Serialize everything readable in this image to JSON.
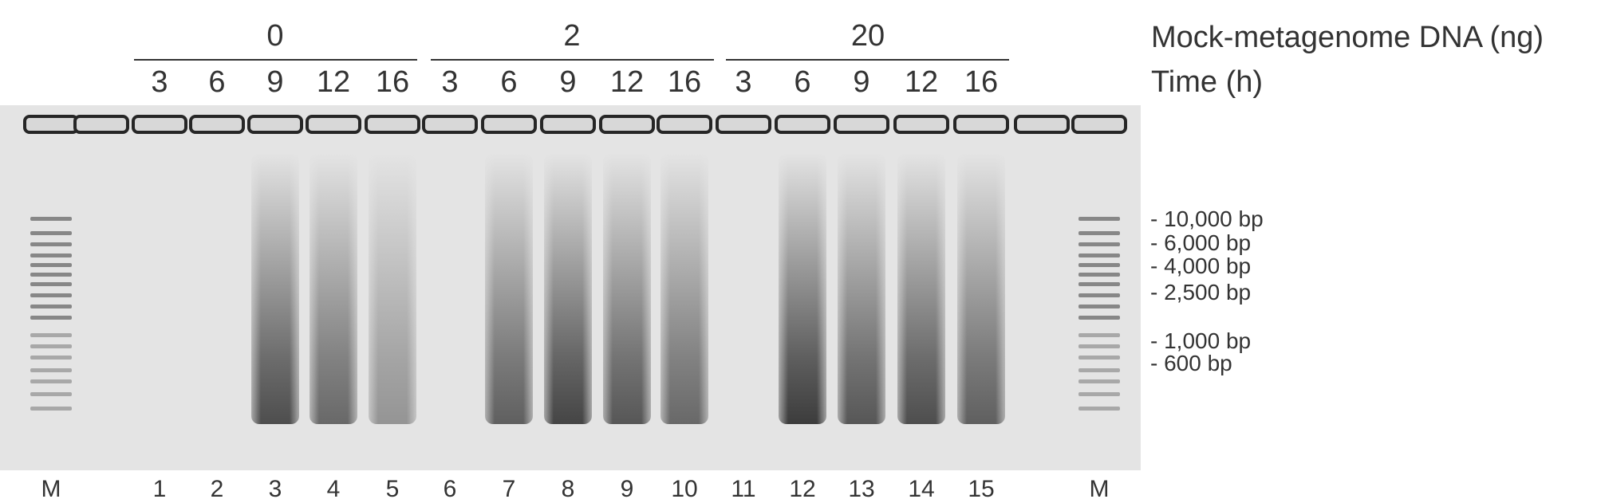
{
  "groups": [
    {
      "label": "0",
      "lanes": [
        1,
        2,
        3,
        4,
        5
      ]
    },
    {
      "label": "2",
      "lanes": [
        6,
        7,
        8,
        9,
        10
      ]
    },
    {
      "label": "20",
      "lanes": [
        11,
        12,
        13,
        14,
        15
      ]
    }
  ],
  "row_labels": {
    "dna": "Mock-metagenome DNA (ng)",
    "time": "Time (h)"
  },
  "time_values": [
    "3",
    "6",
    "9",
    "12",
    "16",
    "3",
    "6",
    "9",
    "12",
    "16",
    "3",
    "6",
    "9",
    "12",
    "16"
  ],
  "lane_labels": [
    "M",
    "1",
    "2",
    "3",
    "4",
    "5",
    "6",
    "7",
    "8",
    "9",
    "10",
    "11",
    "12",
    "13",
    "14",
    "15",
    "M"
  ],
  "markers": [
    "10,000 bp",
    "6,000 bp",
    "4,000 bp",
    "2,500 bp",
    "1,000 bp",
    "600 bp"
  ],
  "smear_intensity": [
    0,
    0,
    0.85,
    0.7,
    0.45,
    0,
    0.75,
    0.9,
    0.8,
    0.7,
    0,
    0.95,
    0.8,
    0.85,
    0.75
  ],
  "colors": {
    "gel": "#e4e4e4",
    "band": "#2a2a2a",
    "text": "#333333"
  }
}
